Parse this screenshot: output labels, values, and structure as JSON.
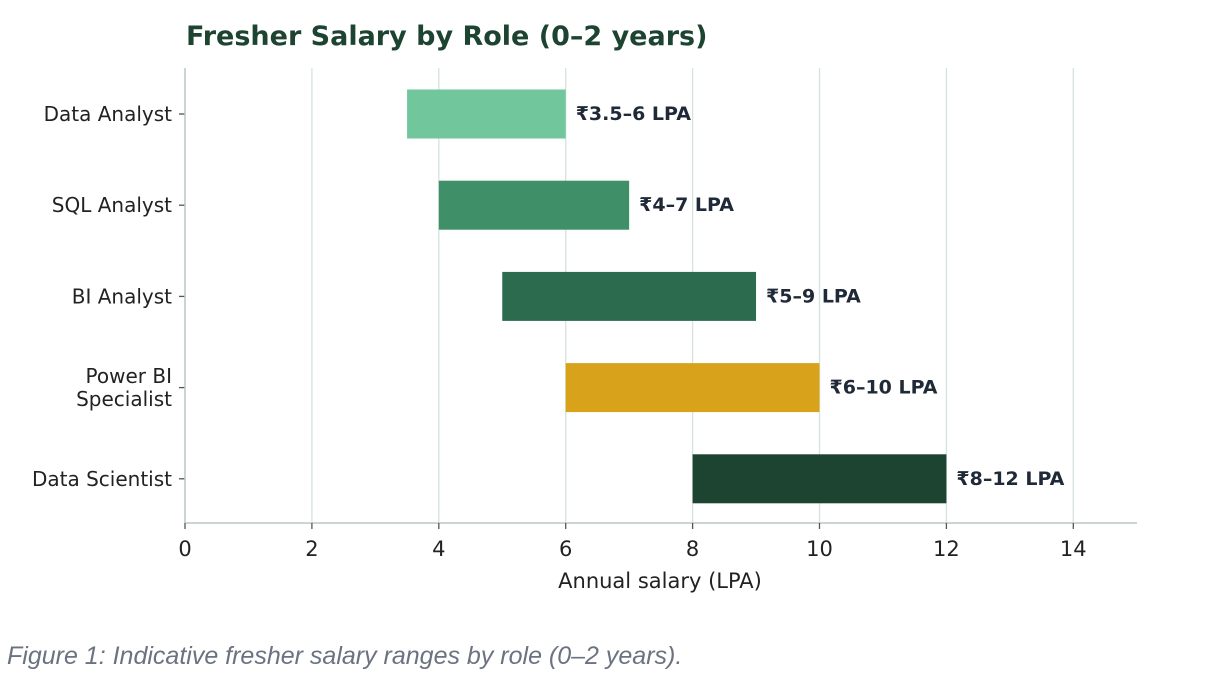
{
  "chart_data": {
    "type": "bar",
    "orientation": "horizontal-range",
    "title": "Fresher Salary by Role (0–2 years)",
    "xlabel": "Annual salary (LPA)",
    "ylabel": "",
    "xlim": [
      0,
      15
    ],
    "xticks": [
      0,
      2,
      4,
      6,
      8,
      10,
      12,
      14
    ],
    "grid": "vertical",
    "categories": [
      "Data Analyst",
      "SQL Analyst",
      "BI Analyst",
      "Power BI Specialist",
      "Data Scientist"
    ],
    "category_labels": [
      [
        "Data Analyst"
      ],
      [
        "SQL Analyst"
      ],
      [
        "BI Analyst"
      ],
      [
        "Power BI",
        "Specialist"
      ],
      [
        "Data Scientist"
      ]
    ],
    "ranges": [
      [
        3.5,
        6
      ],
      [
        4,
        7
      ],
      [
        5,
        9
      ],
      [
        6,
        10
      ],
      [
        8,
        12
      ]
    ],
    "data_labels": [
      "₹3.5–6 LPA",
      "₹4–7 LPA",
      "₹5–9 LPA",
      "₹6–10 LPA",
      "₹8–12 LPA"
    ],
    "colors": [
      "#72c69b",
      "#3f8f68",
      "#2d6b4f",
      "#d9a21b",
      "#1d4431"
    ]
  },
  "caption": "Figure 1: Indicative fresher salary ranges by role (0–2 years)."
}
